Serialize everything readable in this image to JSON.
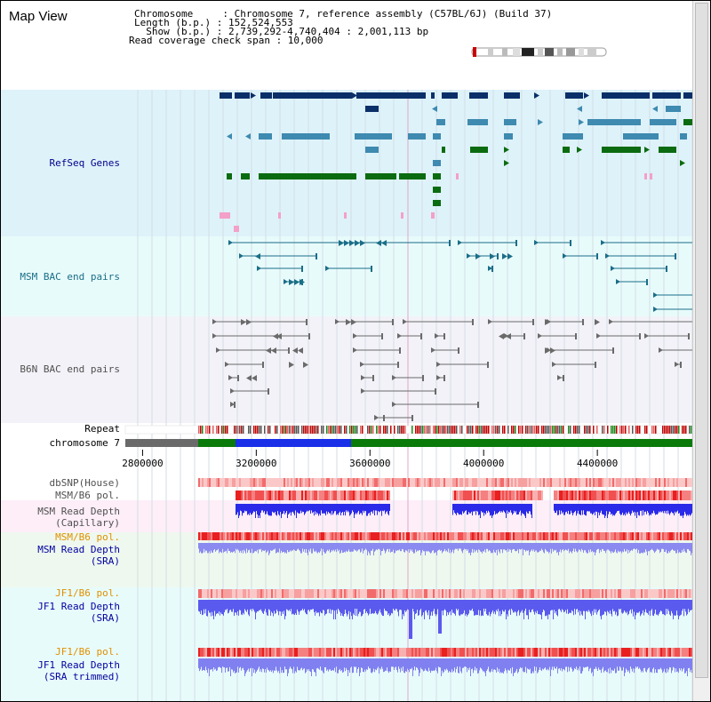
{
  "app_title": "Map View",
  "info": {
    "chromosome_line": "Chromosome     : Chromosome 7, reference assembly (C57BL/6J) (Build 37)",
    "length_line": "Length (b.p.) : 152,524,553",
    "show_line": "  Show (b.p.) : 2,739,292-4,740,404 : 2,001,113 bp",
    "coverage_line": "Read coverage check span : 10,000"
  },
  "colors": {
    "refseq_bg": "#def2fa",
    "msm_bac_bg": "#e8fbfb",
    "b6n_bac_bg": "#f2f2f8",
    "refseq_label": "#00008b",
    "msm_bac_label": "#1a6e88",
    "b6n_label": "#505050",
    "pol_label": "#e09000",
    "depth_label": "#0000a0",
    "dark_blue": "#0b2f68",
    "mid_blue": "#3e8ab0",
    "dark_green": "#0b6b10",
    "pink": "#f4a0c8",
    "depth_blue": "#3030e0",
    "pol_red": "#ef3b3b"
  },
  "track_labels": {
    "refseq": "RefSeq Genes",
    "msm_bac": "MSM BAC end pairs",
    "b6n_bac": "B6N BAC end pairs",
    "repeat": "Repeat",
    "chromosome": "chromosome 7",
    "dbsnp": "dbSNP(House)",
    "msm_b6_pol_1": "MSM/B6 pol.",
    "msm_read_depth_cap_1": "MSM Read Depth",
    "msm_read_depth_cap_2": "(Capillary)",
    "msm_b6_pol_2": "MSM/B6 pol.",
    "msm_read_depth_sra_1": "MSM Read Depth",
    "msm_read_depth_sra_2": "(SRA)",
    "jf1_b6_pol_1": "JF1/B6 pol.",
    "jf1_read_depth_sra_1": "JF1 Read Depth",
    "jf1_read_depth_sra_2": "(SRA)",
    "jf1_b6_pol_2": "JF1/B6 pol.",
    "jf1_read_depth_trim_1": "JF1 Read Depth",
    "jf1_read_depth_trim_2": "(SRA trimmed)"
  },
  "axis": {
    "ticks": [
      "2800000",
      "3200000",
      "3600000",
      "4000000",
      "4400000"
    ],
    "range_bp": [
      2739292,
      4740404
    ],
    "tick_values": [
      2800000,
      3200000,
      3600000,
      4000000,
      4400000
    ]
  }
}
